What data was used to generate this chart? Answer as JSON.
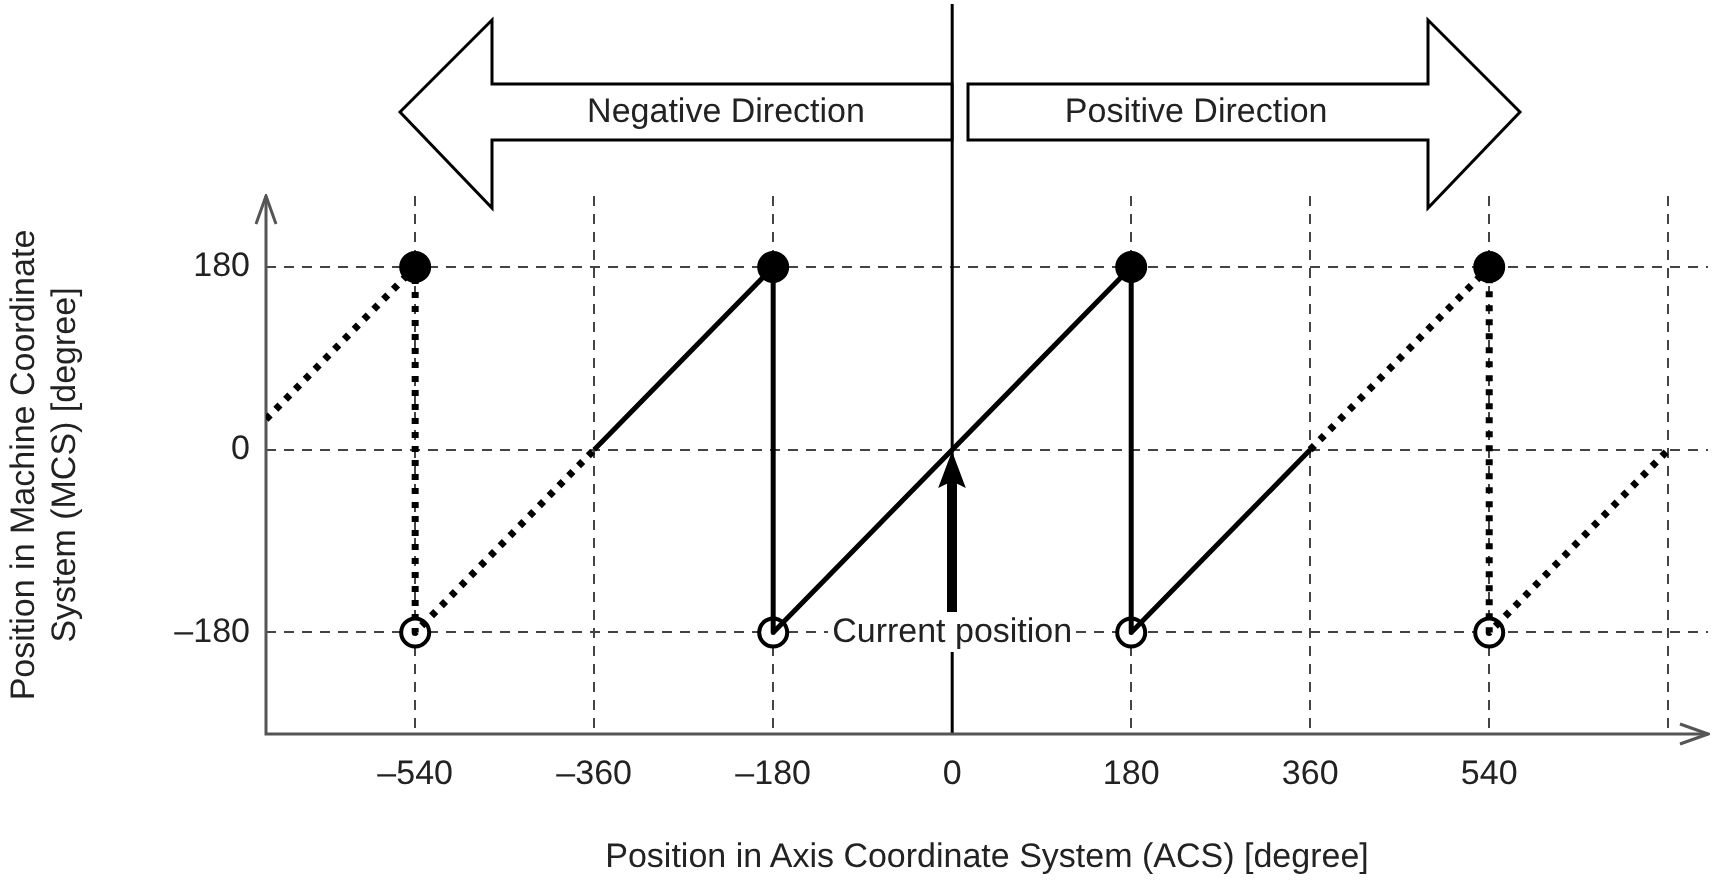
{
  "chart_data": {
    "type": "line",
    "xlabel": "Position in Axis Coordinate System (ACS) [degree]",
    "ylabel": "Position in Machine Coordinate System (MCS) [degree]",
    "xlim": [
      -690,
      760
    ],
    "ylim": [
      -280,
      250
    ],
    "xticks": [
      {
        "value": -540,
        "label": "–540"
      },
      {
        "value": -360,
        "label": "–360"
      },
      {
        "value": -180,
        "label": "–180"
      },
      0,
      180,
      360,
      540,
      {
        "value": 720,
        "label": null
      }
    ],
    "yticks": [
      {
        "value": -180,
        "label": "–180"
      },
      0,
      180
    ],
    "grid": true,
    "legend": false,
    "series": [
      {
        "color": "#000000",
        "line_style": "solid",
        "marker": "none",
        "x": [
          -360,
          -180,
          -180,
          180,
          180,
          360
        ],
        "values": [
          0,
          180,
          -180,
          180,
          -180,
          0
        ]
      },
      {
        "color": "#000000",
        "line_style": "dotted",
        "marker": "none",
        "x": [
          -690,
          -540,
          -540,
          -360
        ],
        "values": [
          30,
          180,
          -180,
          0
        ]
      },
      {
        "color": "#000000",
        "line_style": "dotted",
        "marker": "none",
        "x": [
          360,
          540,
          540,
          720
        ],
        "values": [
          0,
          180,
          -180,
          0
        ]
      },
      {
        "type": "scatter",
        "color": "#000000",
        "marker": "circle",
        "x": [
          -540,
          -180,
          180,
          540
        ],
        "values": [
          180,
          180,
          180,
          180
        ]
      },
      {
        "type": "scatter",
        "color": "#ffffff",
        "marker": "circle",
        "x": [
          -540,
          -180,
          180,
          540
        ],
        "values": [
          -180,
          -180,
          -180,
          -180
        ]
      }
    ],
    "ref_lines": [
      {
        "axis": "x",
        "value": 0,
        "color": "#000000"
      }
    ],
    "annotations": [
      "Negative Direction",
      "Positive Direction",
      {
        "text": "Current position",
        "x": 0,
        "y": -180
      }
    ]
  }
}
